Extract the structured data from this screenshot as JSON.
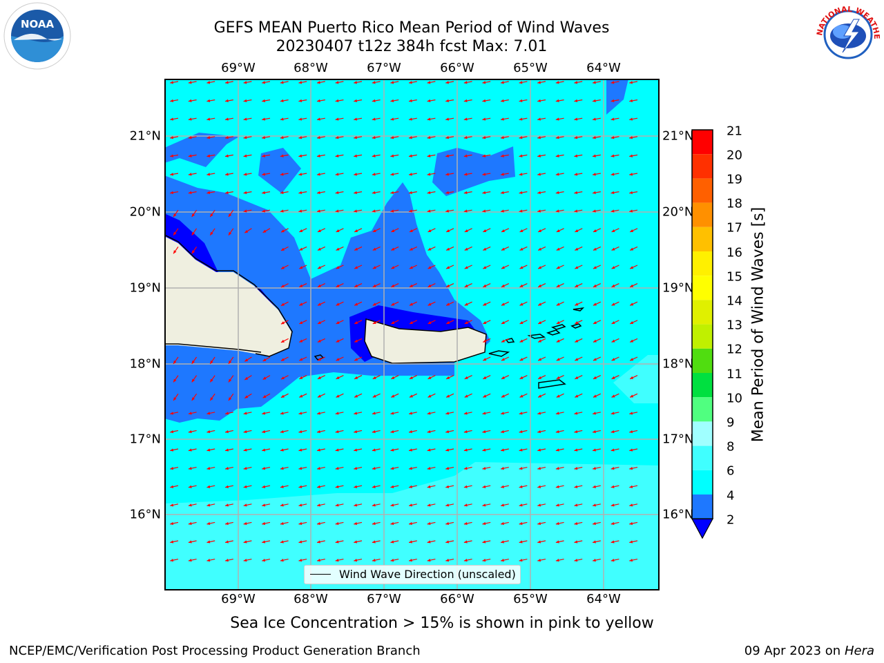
{
  "title": {
    "line1": "GEFS MEAN Puerto Rico Mean Period of Wind Waves",
    "line2": "20230407 t12z 384h fcst   Max: 7.01"
  },
  "axes": {
    "lon_labels": [
      "69°W",
      "68°W",
      "67°W",
      "66°W",
      "65°W",
      "64°W"
    ],
    "lat_labels": [
      "21°N",
      "20°N",
      "19°N",
      "18°N",
      "17°N",
      "16°N"
    ]
  },
  "legend": {
    "label": "Wind Wave Direction (unscaled)"
  },
  "colorbar": {
    "label": "Mean Period of Wind Waves [s]",
    "ticks": [
      "21",
      "20",
      "19",
      "18",
      "17",
      "16",
      "15",
      "14",
      "13",
      "12",
      "11",
      "10",
      "9",
      "8",
      "6",
      "4",
      "2"
    ],
    "colors": {
      "below_2": "#0000ff",
      "2_4": "#1e78ff",
      "4_6": "#00ffff",
      "6_8": "#40ffff",
      "8_9": "#a0ffff",
      "9_10": "#50ff80",
      "10_11": "#00e040",
      "11_12": "#50dd10",
      "12_13": "#c0f000",
      "13_14": "#e0f000",
      "14_15": "#ffff00",
      "15_16": "#fff000",
      "16_17": "#ffc000",
      "17_18": "#ff9000",
      "18_19": "#ff6000",
      "19_20": "#ff3000",
      "20_21": "#ff0000"
    }
  },
  "map_colors": {
    "land": "#efefe0",
    "arrow": "#ff0000",
    "grid": "#b0b0b0"
  },
  "logos": {
    "left": "NOAA",
    "right": "NATIONAL WEATHER SERVICE"
  },
  "subtitle": "Sea Ice Concentration > 15% is shown in pink to yellow",
  "footer": {
    "left": "NCEP/EMC/Verification Post Processing Product Generation Branch",
    "right_date": "09 Apr 2023 on ",
    "right_host": "Hera"
  }
}
